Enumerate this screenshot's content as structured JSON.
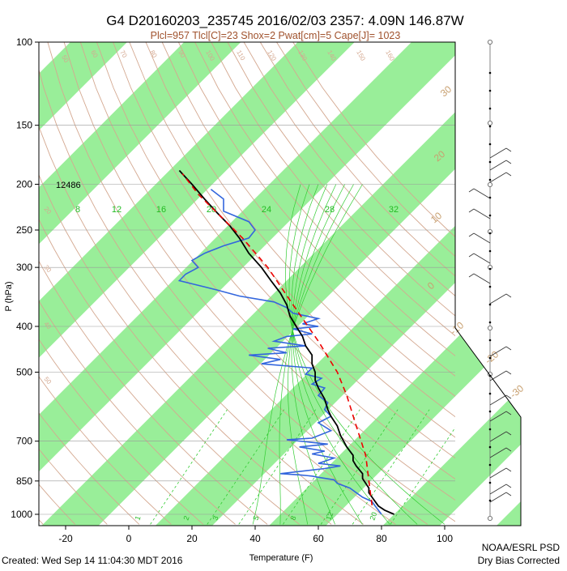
{
  "header": {
    "title": "G4 D20160203_235745 2016/02/03 2357:  4.09N 146.87W",
    "subtitle": "Plcl=957 Tlcl[C]=23 Shox=2 Pwat[cm]=5 Cape[J]= 1023"
  },
  "footer": {
    "created": "Created: Wed Sep 14 11:04:30 MDT 2016",
    "credit_line1": "NOAA/ESRL PSD",
    "credit_line2": "Dry Bias Corrected"
  },
  "colors": {
    "band": "#99ee99",
    "temperature": "#000000",
    "dewpoint": "#3366dd",
    "parcel": "#ee0000",
    "dry_adiabat": "#d4a890",
    "moist_adiabat": "#33cc33",
    "mixing_ratio": "#33cc33",
    "title_sub": "#a0522d"
  },
  "chart_data": {
    "type": "line",
    "title": "G4 D20160203_235745 2016/02/03 2357:  4.09N 146.87W",
    "xlabel": "Temperature (F)",
    "ylabel": "P (hPa)",
    "xlim": [
      -30,
      110
    ],
    "ylim": [
      1050,
      100
    ],
    "y_scale": "log",
    "x_ticks": [
      -20,
      0,
      20,
      40,
      60,
      80,
      100
    ],
    "y_ticks": [
      100,
      150,
      200,
      250,
      300,
      400,
      500,
      700,
      850,
      1000
    ],
    "height_label": "12486",
    "skewed_isotherm_labels_C": [
      "-30",
      "-20",
      "-10",
      "0",
      "10",
      "20",
      "30"
    ],
    "dry_adiabat_labels": [
      "50",
      "60",
      "70",
      "80",
      "90",
      "100",
      "110",
      "120",
      "130",
      "140",
      "150",
      "160"
    ],
    "theta_e_labels": [
      "20",
      "30",
      "40",
      "50"
    ],
    "moist_labels_top": [
      "8",
      "12",
      "16",
      "20",
      "24",
      "28",
      "32"
    ],
    "mixing_ratio_labels": [
      "1",
      "2",
      "3",
      "5",
      "8",
      "12",
      "20"
    ],
    "series": [
      {
        "name": "temperature",
        "points": [
          [
            84,
            1000
          ],
          [
            81,
            980
          ],
          [
            79,
            960
          ],
          [
            78,
            940
          ],
          [
            77,
            920
          ],
          [
            76,
            900
          ],
          [
            76,
            880
          ],
          [
            75,
            860
          ],
          [
            74,
            840
          ],
          [
            74,
            820
          ],
          [
            72,
            790
          ],
          [
            71,
            770
          ],
          [
            71,
            750
          ],
          [
            69,
            720
          ],
          [
            68,
            700
          ],
          [
            67,
            680
          ],
          [
            66,
            650
          ],
          [
            64,
            620
          ],
          [
            63,
            600
          ],
          [
            62,
            570
          ],
          [
            60,
            540
          ],
          [
            59,
            520
          ],
          [
            59,
            500
          ],
          [
            58,
            480
          ],
          [
            58,
            460
          ],
          [
            56,
            440
          ],
          [
            55,
            420
          ],
          [
            53,
            400
          ],
          [
            51,
            380
          ],
          [
            50,
            360
          ],
          [
            48,
            340
          ],
          [
            45,
            320
          ],
          [
            42,
            300
          ],
          [
            38,
            280
          ],
          [
            35,
            260
          ],
          [
            32,
            245
          ],
          [
            28,
            230
          ],
          [
            24,
            215
          ],
          [
            20,
            200
          ],
          [
            16,
            187
          ]
        ]
      },
      {
        "name": "dewpoint",
        "points": [
          [
            80,
            1000
          ],
          [
            79,
            980
          ],
          [
            78,
            960
          ],
          [
            77,
            940
          ],
          [
            74,
            920
          ],
          [
            72,
            900
          ],
          [
            70,
            880
          ],
          [
            66,
            860
          ],
          [
            65,
            845
          ],
          [
            60,
            835
          ],
          [
            58,
            830
          ],
          [
            54,
            825
          ],
          [
            48,
            820
          ],
          [
            62,
            800
          ],
          [
            67,
            790
          ],
          [
            60,
            780
          ],
          [
            65,
            760
          ],
          [
            58,
            745
          ],
          [
            62,
            735
          ],
          [
            54,
            720
          ],
          [
            63,
            710
          ],
          [
            50,
            695
          ],
          [
            58,
            690
          ],
          [
            64,
            665
          ],
          [
            60,
            640
          ],
          [
            64,
            620
          ],
          [
            62,
            600
          ],
          [
            63,
            580
          ],
          [
            60,
            560
          ],
          [
            62,
            540
          ],
          [
            58,
            530
          ],
          [
            61,
            515
          ],
          [
            56,
            505
          ],
          [
            58,
            490
          ],
          [
            42,
            480
          ],
          [
            48,
            470
          ],
          [
            38,
            460
          ],
          [
            50,
            455
          ],
          [
            44,
            445
          ],
          [
            56,
            440
          ],
          [
            46,
            430
          ],
          [
            50,
            420
          ],
          [
            58,
            415
          ],
          [
            52,
            405
          ],
          [
            60,
            400
          ],
          [
            55,
            395
          ],
          [
            60,
            385
          ],
          [
            52,
            375
          ],
          [
            50,
            365
          ],
          [
            46,
            355
          ],
          [
            35,
            345
          ],
          [
            28,
            335
          ],
          [
            20,
            325
          ],
          [
            16,
            320
          ],
          [
            18,
            310
          ],
          [
            22,
            300
          ],
          [
            20,
            290
          ],
          [
            24,
            280
          ],
          [
            30,
            270
          ],
          [
            38,
            260
          ],
          [
            40,
            250
          ],
          [
            38,
            240
          ],
          [
            30,
            228
          ],
          [
            30,
            215
          ],
          [
            26,
            205
          ]
        ]
      },
      {
        "name": "parcel",
        "points": [
          [
            77,
            957
          ],
          [
            76,
            850
          ],
          [
            75,
            750
          ],
          [
            72,
            650
          ],
          [
            69,
            560
          ],
          [
            66,
            500
          ],
          [
            60,
            430
          ],
          [
            52,
            360
          ],
          [
            44,
            300
          ],
          [
            36,
            260
          ],
          [
            28,
            230
          ],
          [
            22,
            210
          ],
          [
            17,
            190
          ]
        ]
      }
    ],
    "wind_barbs_present": true
  }
}
